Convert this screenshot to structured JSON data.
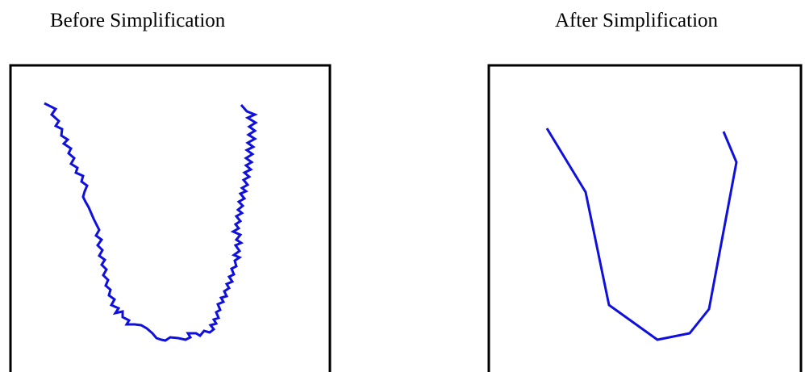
{
  "panels": [
    {
      "title": "Before Simplification"
    },
    {
      "title": "After Simplification"
    }
  ],
  "colors": {
    "line": "#1010dd",
    "frame": "#000000",
    "background": "#ffffff"
  }
}
